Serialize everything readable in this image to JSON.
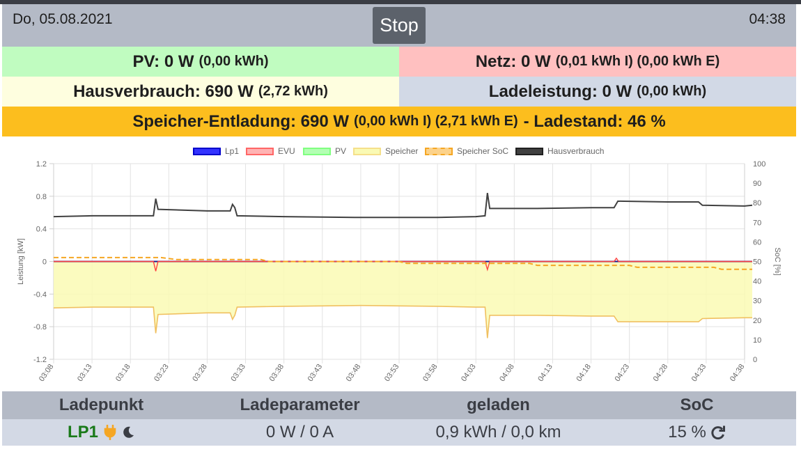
{
  "header": {
    "date": "Do, 05.08.2021",
    "time": "04:38",
    "stop_label": "Stop"
  },
  "summary": {
    "pv": {
      "main": "PV: 0 W",
      "sub": "(0,00 kWh)",
      "color": "#c0fcc0"
    },
    "netz": {
      "main": "Netz: 0 W",
      "sub": "(0,01 kWh I) (0,00 kWh E)",
      "color": "#ffc0c0"
    },
    "haus": {
      "main": "Hausverbrauch: 690 W",
      "sub": "(2,72 kWh)",
      "color": "#fefedf"
    },
    "lade": {
      "main": "Ladeleistung: 0 W",
      "sub": "(0,00 kWh)",
      "color": "#d2d9e6"
    },
    "speicher": {
      "main": "Speicher-Entladung: 690 W",
      "sub": "(0,00 kWh I) (2,71 kWh E)",
      "tail": "- Ladestand: 46 %",
      "color": "#fcbe1e"
    }
  },
  "chart_data": {
    "type": "line",
    "legend": [
      {
        "name": "Lp1",
        "color": "#0000ff",
        "style": "solid"
      },
      {
        "name": "EVU",
        "color": "#ff0000",
        "style": "solid"
      },
      {
        "name": "PV",
        "color": "#00ff00",
        "style": "solid"
      },
      {
        "name": "Speicher",
        "color": "#fcbe1e",
        "style": "solid"
      },
      {
        "name": "Speicher SoC",
        "color": "#fcbe1e",
        "style": "dashed"
      },
      {
        "name": "Hausverbrauch",
        "color": "#404040",
        "style": "solid"
      }
    ],
    "ylabel": "Leistung [kW]",
    "y2label": "SoC [%]",
    "ylim": [
      -1.2,
      1.2
    ],
    "yticks": [
      "1.2",
      "0.8",
      "0.4",
      "0",
      "-0.4",
      "-0.8",
      "-1.2"
    ],
    "y2lim": [
      0,
      100
    ],
    "y2ticks": [
      "100",
      "90",
      "80",
      "70",
      "60",
      "50",
      "40",
      "30",
      "20",
      "10",
      "0"
    ],
    "xticks": [
      "03:08",
      "03:13",
      "03:18",
      "03:23",
      "03:28",
      "03:33",
      "03:38",
      "03:43",
      "03:48",
      "03:53",
      "03:58",
      "04:03",
      "04:08",
      "04:13",
      "04:18",
      "04:23",
      "04:28",
      "04:33",
      "04:38"
    ],
    "x_minutes_start": "03:08",
    "series": [
      {
        "name": "Hausverbrauch",
        "points": [
          [
            0,
            0.55
          ],
          [
            5,
            0.56
          ],
          [
            10,
            0.56
          ],
          [
            13,
            0.56
          ],
          [
            13.3,
            0.77
          ],
          [
            13.6,
            0.64
          ],
          [
            20,
            0.62
          ],
          [
            23,
            0.62
          ],
          [
            23.3,
            0.7
          ],
          [
            23.6,
            0.66
          ],
          [
            23.9,
            0.56
          ],
          [
            30,
            0.55
          ],
          [
            40,
            0.54
          ],
          [
            50,
            0.54
          ],
          [
            55,
            0.55
          ],
          [
            56.2,
            0.56
          ],
          [
            56.5,
            0.84
          ],
          [
            56.8,
            0.65
          ],
          [
            63,
            0.65
          ],
          [
            70,
            0.66
          ],
          [
            73,
            0.66
          ],
          [
            73.5,
            0.74
          ],
          [
            80,
            0.73
          ],
          [
            84,
            0.73
          ],
          [
            84.5,
            0.69
          ],
          [
            90,
            0.68
          ],
          [
            91,
            0.69
          ]
        ]
      },
      {
        "name": "Speicher",
        "points": [
          [
            0,
            -0.57
          ],
          [
            5,
            -0.56
          ],
          [
            10,
            -0.56
          ],
          [
            13,
            -0.56
          ],
          [
            13.3,
            -0.88
          ],
          [
            13.6,
            -0.65
          ],
          [
            20,
            -0.63
          ],
          [
            23,
            -0.63
          ],
          [
            23.3,
            -0.71
          ],
          [
            23.6,
            -0.66
          ],
          [
            23.9,
            -0.56
          ],
          [
            30,
            -0.55
          ],
          [
            40,
            -0.54
          ],
          [
            50,
            -0.55
          ],
          [
            55,
            -0.56
          ],
          [
            56.2,
            -0.56
          ],
          [
            56.5,
            -0.94
          ],
          [
            56.8,
            -0.66
          ],
          [
            63,
            -0.66
          ],
          [
            70,
            -0.67
          ],
          [
            73,
            -0.67
          ],
          [
            73.5,
            -0.74
          ],
          [
            80,
            -0.74
          ],
          [
            84,
            -0.74
          ],
          [
            84.5,
            -0.7
          ],
          [
            90,
            -0.69
          ],
          [
            91,
            -0.69
          ]
        ]
      },
      {
        "name": "EVU",
        "points": [
          [
            0,
            0
          ],
          [
            13,
            0
          ],
          [
            13.3,
            -0.12
          ],
          [
            13.6,
            0
          ],
          [
            56.2,
            0
          ],
          [
            56.5,
            -0.1
          ],
          [
            56.8,
            0
          ],
          [
            73,
            0
          ],
          [
            73.3,
            0.04
          ],
          [
            73.6,
            0
          ],
          [
            91,
            0
          ]
        ]
      },
      {
        "name": "Lp1",
        "points": [
          [
            0,
            0
          ],
          [
            91,
            0
          ]
        ]
      },
      {
        "name": "Speicher SoC",
        "axis": "y2",
        "points": [
          [
            0,
            52
          ],
          [
            14,
            52
          ],
          [
            16,
            51
          ],
          [
            27,
            51
          ],
          [
            28,
            50
          ],
          [
            45,
            50
          ],
          [
            46,
            49
          ],
          [
            62,
            49
          ],
          [
            63,
            48
          ],
          [
            75,
            48
          ],
          [
            76,
            47
          ],
          [
            86,
            47
          ],
          [
            87,
            46
          ],
          [
            91,
            46
          ]
        ]
      }
    ]
  },
  "table": {
    "headers": [
      "Ladepunkt",
      "Ladeparameter",
      "geladen",
      "SoC"
    ],
    "row": {
      "name": "LP1",
      "params": "0 W / 0 A",
      "charged": "0,9 kWh / 0,0 km",
      "soc": "15 %"
    }
  }
}
